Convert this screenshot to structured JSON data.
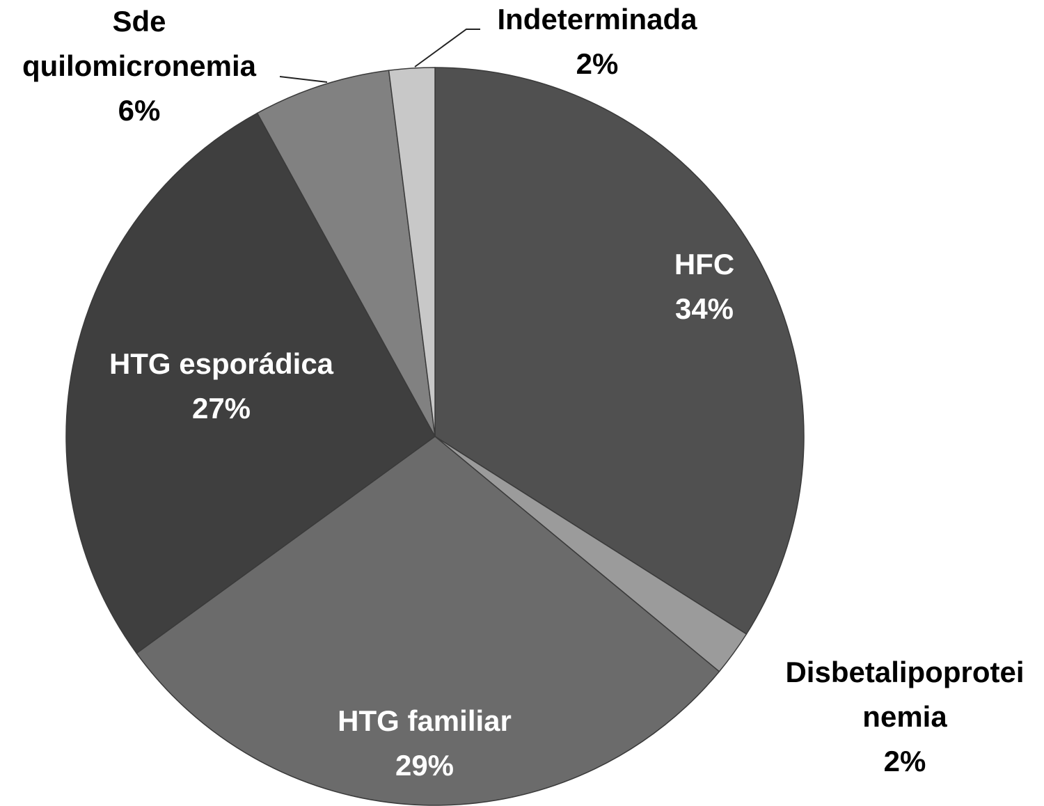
{
  "chart_data": {
    "type": "pie",
    "categories": [
      "HFC",
      "Disbetalipoprotei\nnemia",
      "HTG familiar",
      "HTG esporádica",
      "Sde\nquilomicronemia",
      "Indeterminada"
    ],
    "values": [
      34,
      2,
      29,
      27,
      6,
      2
    ],
    "value_labels": [
      "34%",
      "2%",
      "29%",
      "27%",
      "6%",
      "2%"
    ],
    "colors": [
      "#505050",
      "#9b9b9b",
      "#6b6b6b",
      "#3f3f3f",
      "#818181",
      "#c8c8c8"
    ]
  }
}
